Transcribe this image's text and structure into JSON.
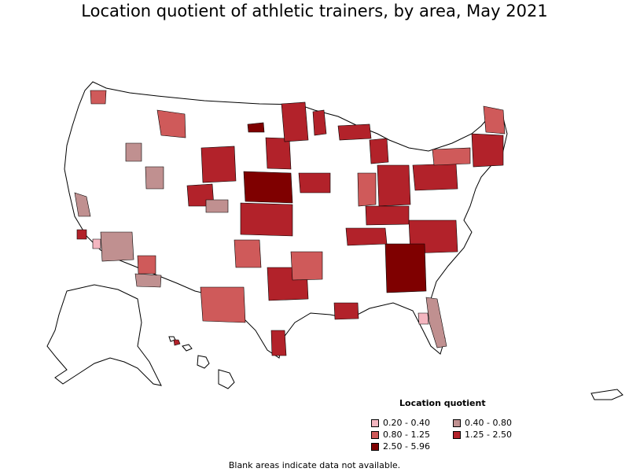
{
  "title": "Location quotient of athletic trainers, by area, May 2021",
  "legend": {
    "title": "Location quotient",
    "items": [
      {
        "label": "0.20 - 0.40",
        "color": "#f4b6c0"
      },
      {
        "label": "0.40 - 0.80",
        "color": "#c09090"
      },
      {
        "label": "0.80 - 1.25",
        "color": "#cf5a5a"
      },
      {
        "label": "1.25 - 2.50",
        "color": "#b2222a"
      },
      {
        "label": "2.50 - 5.96",
        "color": "#7f0000"
      }
    ]
  },
  "footnote": "Blank areas indicate data not available.",
  "map_colors": {
    "blank": "#ffffff",
    "border": "#000000"
  }
}
